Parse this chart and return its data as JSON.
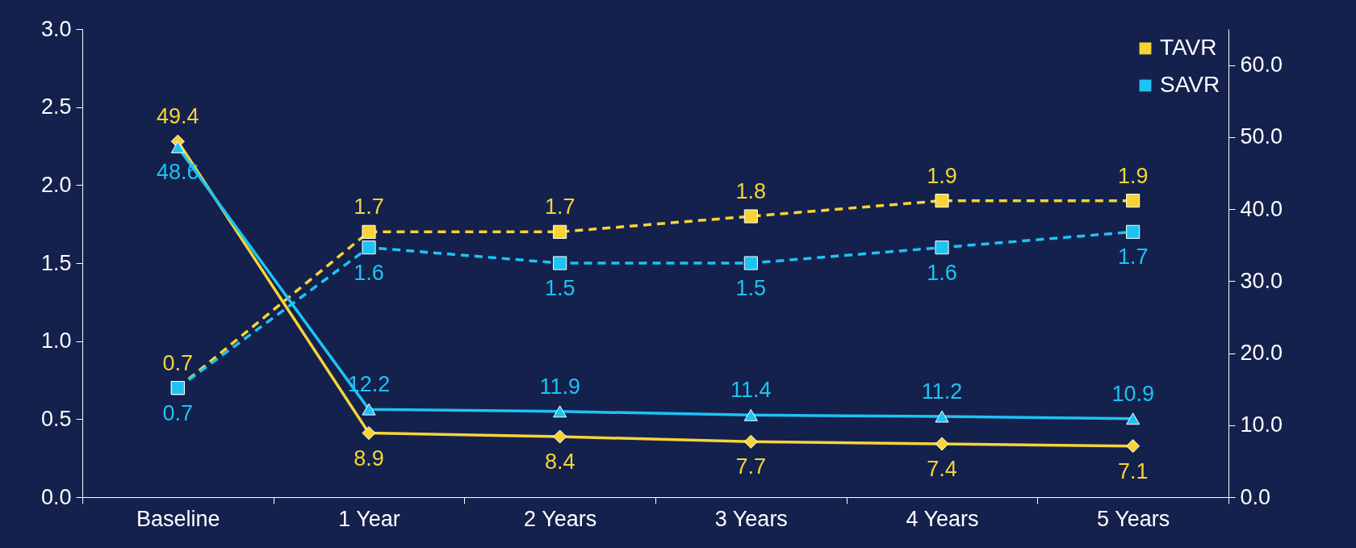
{
  "chart_data": {
    "type": "line",
    "categories": [
      "Baseline",
      "1 Year",
      "2 Years",
      "3 Years",
      "4 Years",
      "5 Years"
    ],
    "series": [
      {
        "name": "TAVR",
        "color": "#f7d436",
        "values": [
          0.7,
          1.7,
          1.7,
          1.8,
          1.9,
          1.9
        ],
        "line_style": "dashed",
        "marker": "square"
      },
      {
        "name": "SAVR",
        "color": "#1ec3f2",
        "values": [
          0.7,
          1.6,
          1.5,
          1.5,
          1.6,
          1.7
        ],
        "line_style": "dashed",
        "marker": "square"
      },
      {
        "color": "#f7d436",
        "values": [
          49.4,
          8.9,
          8.4,
          7.7,
          7.4,
          7.1
        ],
        "axis": "y2",
        "line_style": "solid",
        "marker": "diamond"
      },
      {
        "color": "#1ec3f2",
        "values": [
          48.6,
          12.2,
          11.9,
          11.4,
          11.2,
          10.9
        ],
        "axis": "y2",
        "line_style": "solid",
        "marker": "triangle"
      }
    ],
    "ylim": [
      0,
      3
    ],
    "yticks": [
      {
        "value": 0,
        "label": "0.0"
      },
      0.5,
      {
        "value": 1,
        "label": "1.0"
      },
      1.5,
      {
        "value": 2,
        "label": "2.0"
      },
      2.5,
      {
        "value": 3,
        "label": "3.0"
      }
    ],
    "y2lim": [
      0,
      65
    ],
    "y2ticks": [
      {
        "value": 0,
        "label": "0.0"
      },
      {
        "value": 10,
        "label": "10.0"
      },
      {
        "value": 20,
        "label": "20.0"
      },
      {
        "value": 30,
        "label": "30.0"
      },
      {
        "value": 40,
        "label": "40.0"
      },
      {
        "value": 50,
        "label": "50.0"
      },
      {
        "value": 60,
        "label": "60.0"
      }
    ],
    "data_labels": true,
    "legend": "top right"
  }
}
